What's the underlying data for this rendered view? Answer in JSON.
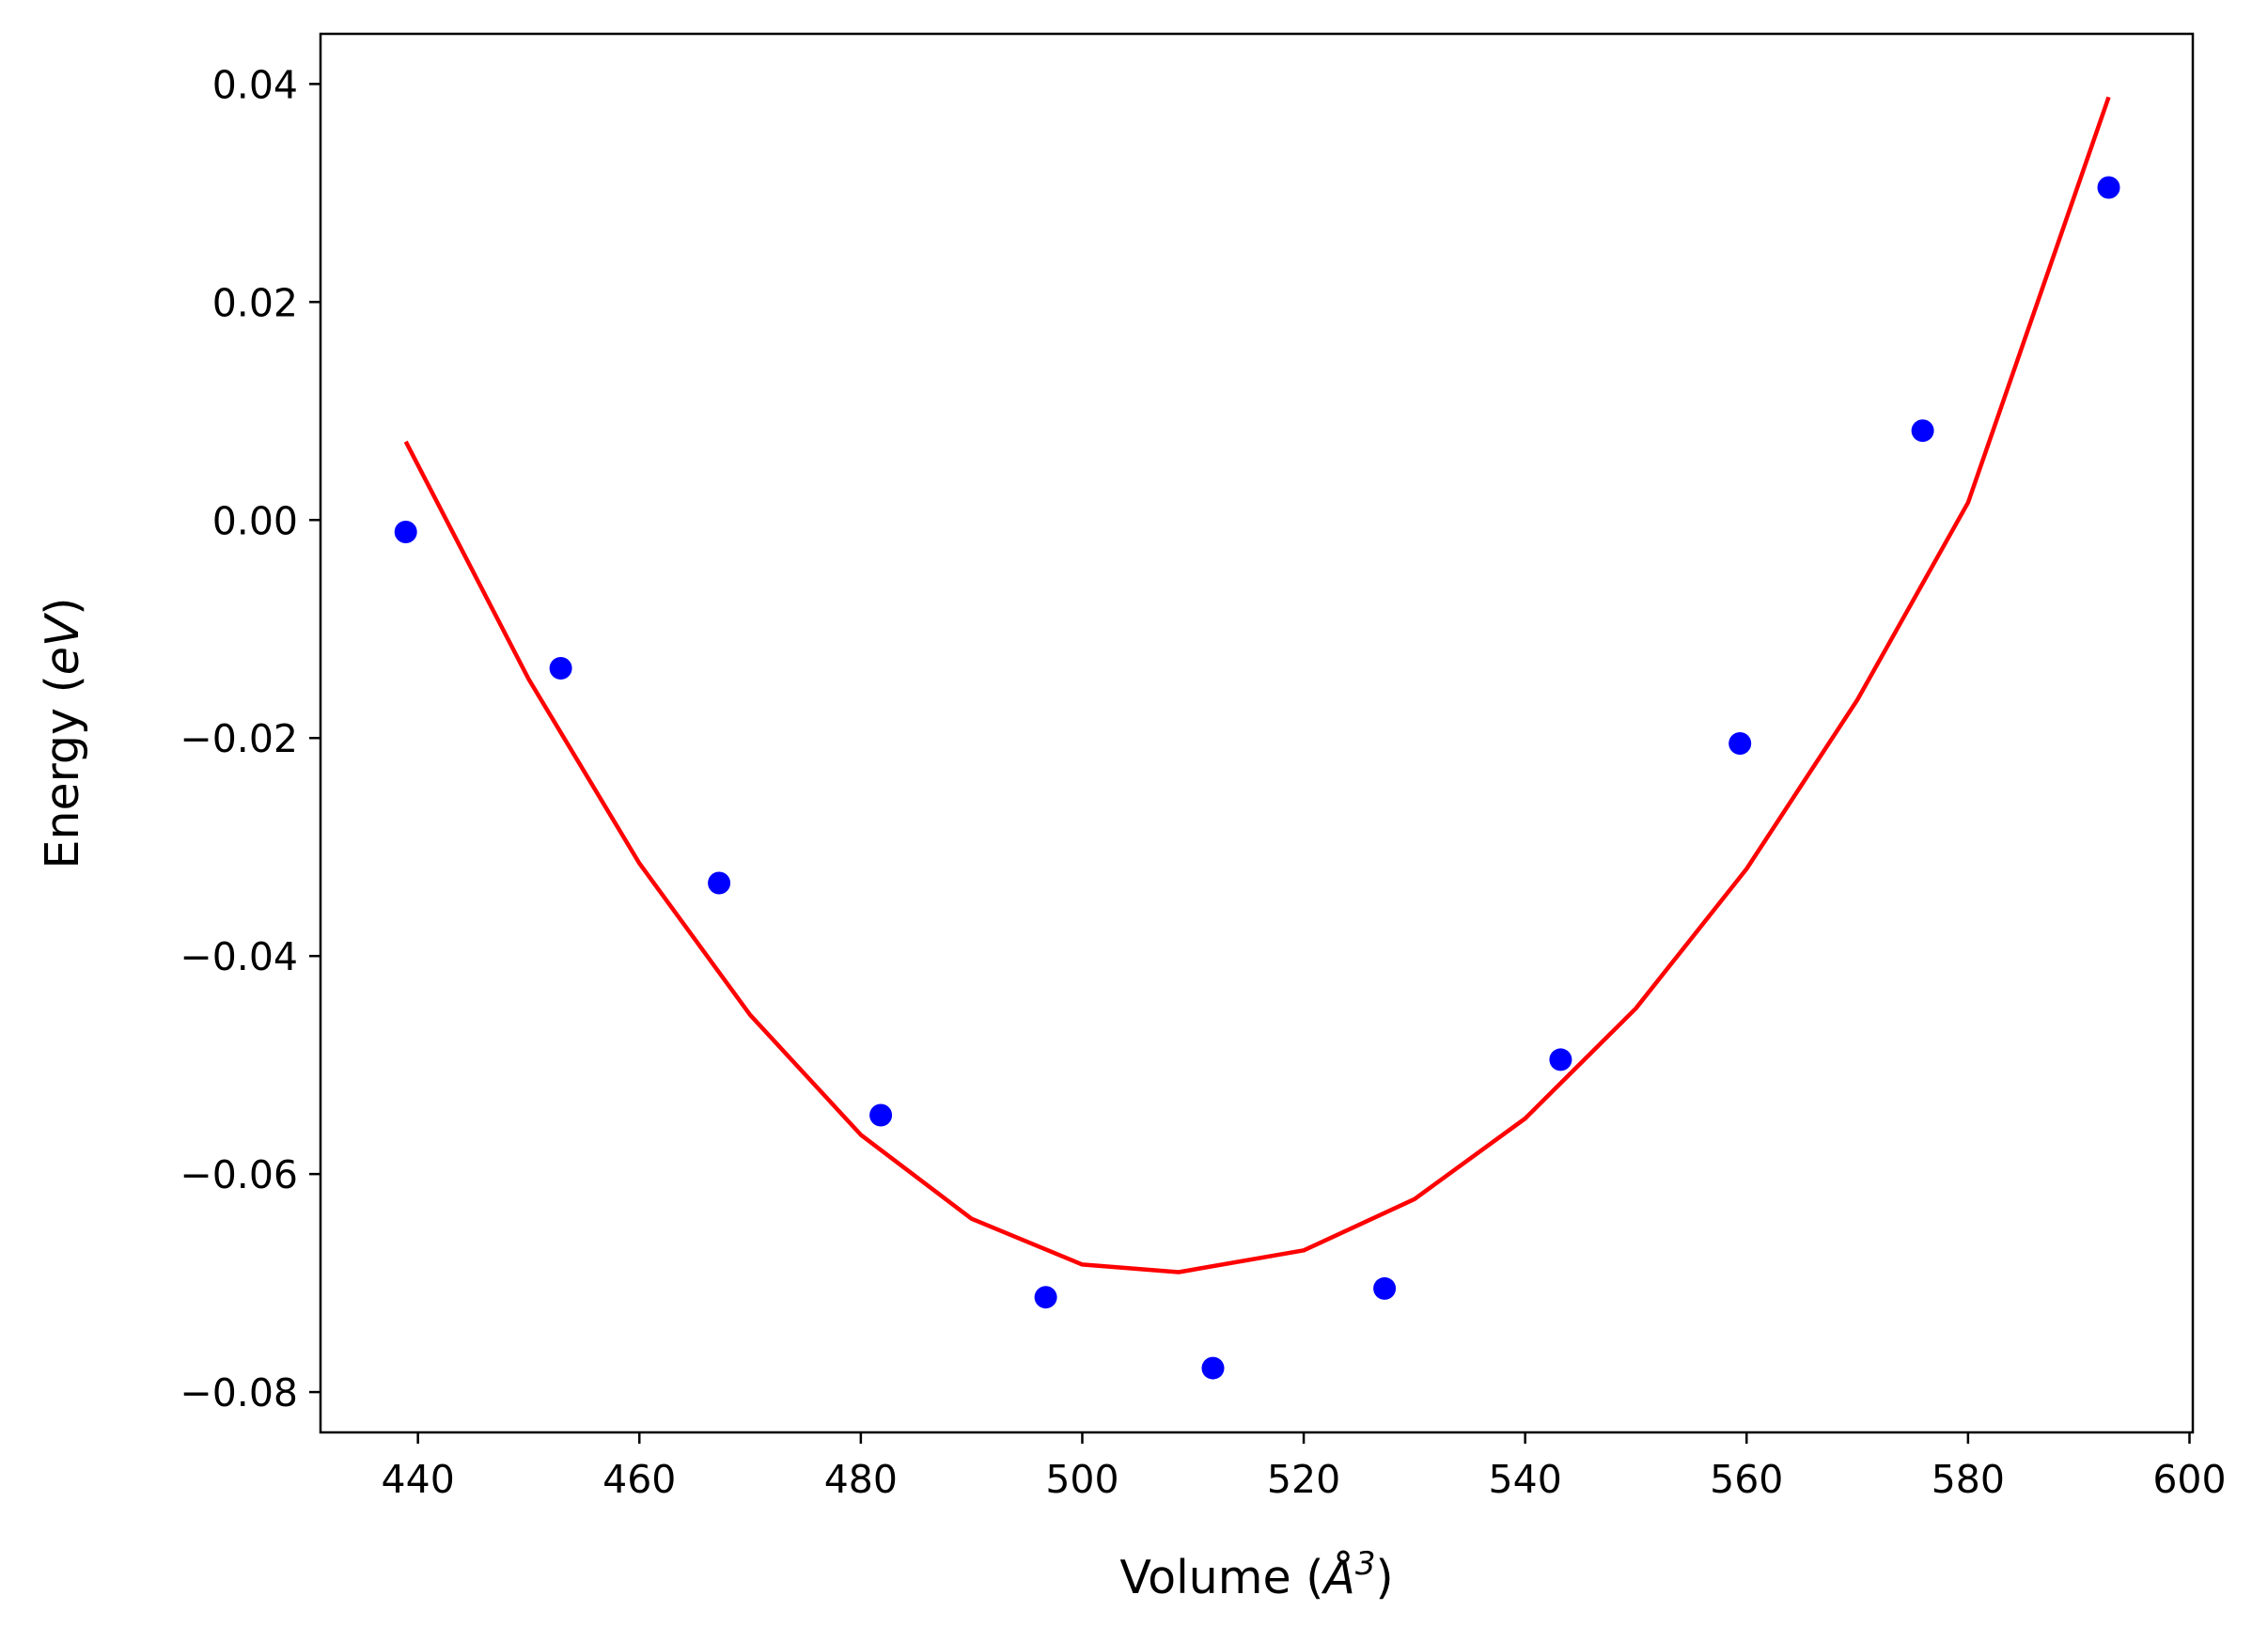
{
  "chart_data": {
    "type": "scatter",
    "title": "",
    "xlabel": "Volume (",
    "xlabel_unit": "Å",
    "xlabel_exp": "3",
    "xlabel_close": ")",
    "ylabel": "Energy (",
    "ylabel_unit": "eV",
    "ylabel_close": ")",
    "xlim": [
      431.2,
      600.3
    ],
    "ylim": [
      -0.0837,
      0.0446
    ],
    "xticks": [
      440,
      460,
      480,
      500,
      520,
      540,
      560,
      580,
      600
    ],
    "xtick_labels": [
      "440",
      "460",
      "480",
      "500",
      "520",
      "540",
      "560",
      "580",
      "600"
    ],
    "yticks": [
      0.04,
      0.02,
      0.0,
      -0.02,
      -0.04,
      -0.06,
      -0.08
    ],
    "ytick_labels": [
      "0.04",
      "0.02",
      "0.00",
      "−0.02",
      "−0.04",
      "−0.06",
      "−0.08"
    ],
    "grid": false,
    "series": [
      {
        "kind": "points",
        "color": "#0000ff",
        "x": [
          438.9,
          452.9,
          467.2,
          481.8,
          496.7,
          511.8,
          527.3,
          543.2,
          559.4,
          575.9,
          592.7
        ],
        "y": [
          -0.0011,
          -0.0136,
          -0.0333,
          -0.0546,
          -0.0713,
          -0.0778,
          -0.0705,
          -0.0495,
          -0.0205,
          0.0082,
          0.0305
        ]
      },
      {
        "kind": "fit-line",
        "color": "#ff0000",
        "x": [
          438.9,
          450,
          460,
          470,
          480,
          490,
          500,
          508.7,
          520,
          530,
          540,
          550,
          560,
          570,
          580,
          592.7
        ],
        "y": [
          0.0072,
          -0.0146,
          -0.0315,
          -0.0454,
          -0.0564,
          -0.0641,
          -0.0683,
          -0.069,
          -0.067,
          -0.0623,
          -0.0549,
          -0.0448,
          -0.032,
          -0.0165,
          0.0016,
          0.0388
        ]
      }
    ]
  }
}
